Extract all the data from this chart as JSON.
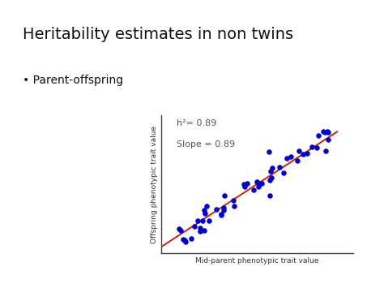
{
  "title": "Heritability estimates in non twins",
  "bullet_text": "Parent-offspring",
  "annotation_h2": "h²= 0.89",
  "annotation_slope": "Slope = 0.89",
  "xlabel": "Mid-parent phenotypic trait value",
  "ylabel": "Offspring phenotypic trait value",
  "slope": 0.89,
  "intercept": 0.05,
  "x_range": [
    0.05,
    0.92
  ],
  "dot_color": "#0000cc",
  "line_color": "#cc2200",
  "title_fontsize": 14,
  "bullet_fontsize": 10,
  "label_fontsize": 6.5,
  "annotation_fontsize": 8,
  "seed": 42,
  "n_points": 55,
  "border_color": "#999999"
}
